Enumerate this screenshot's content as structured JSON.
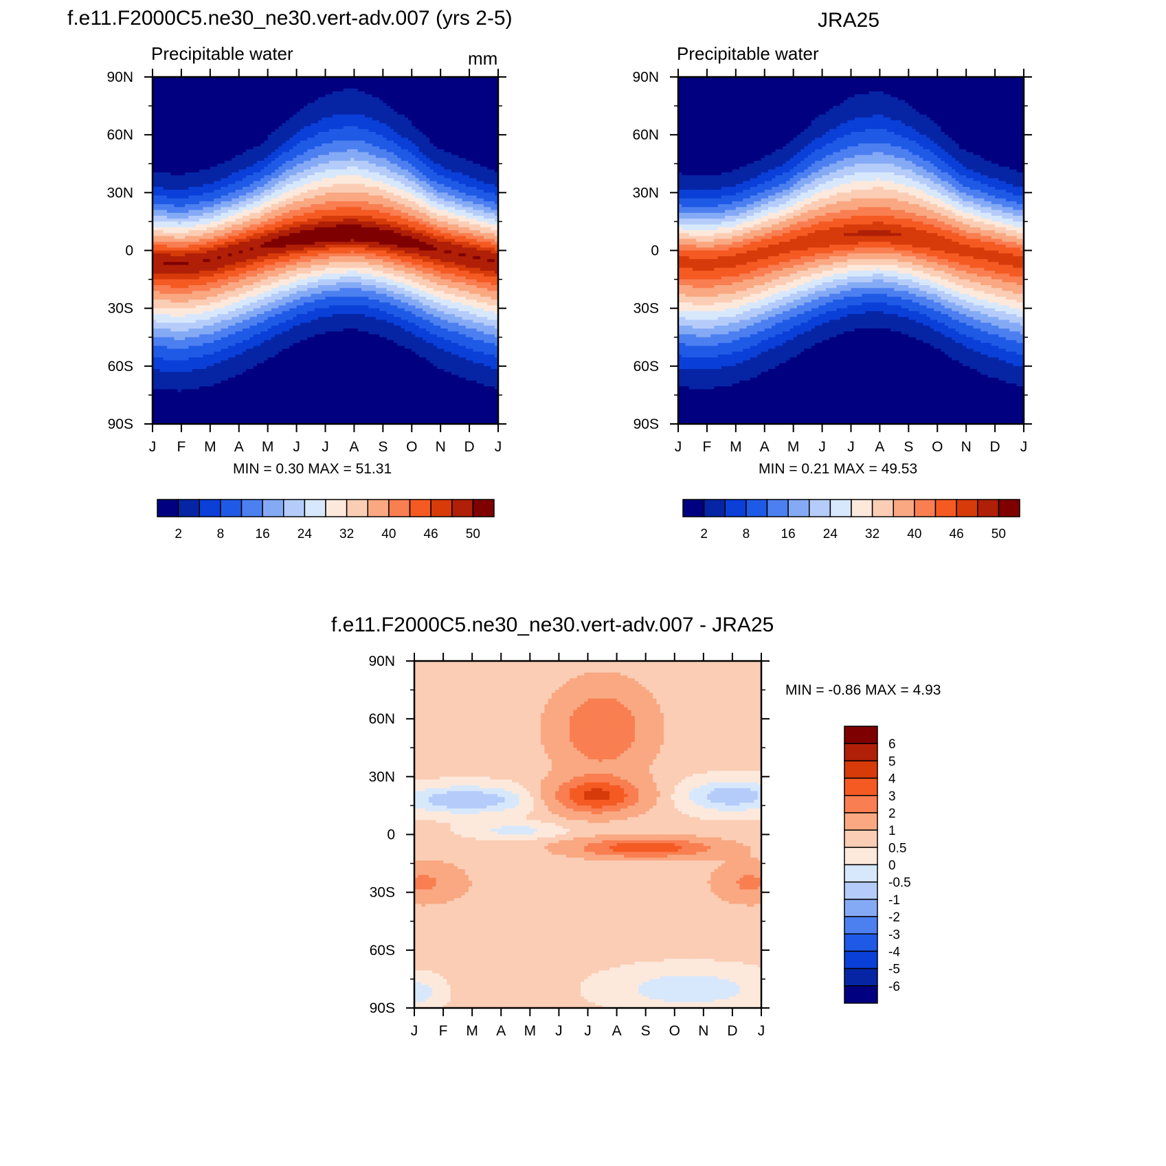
{
  "colors": {
    "pw_levels": [
      "#000080",
      "#0625a5",
      "#0a3fd8",
      "#1f5ae6",
      "#4c7ff0",
      "#85aaf5",
      "#b5ccfa",
      "#d8e8fc",
      "#fde9dc",
      "#fbcdb4",
      "#f9a882",
      "#f97e51",
      "#f55a23",
      "#d73b0a",
      "#b01f07",
      "#7f0000"
    ],
    "diff_levels": [
      "#000080",
      "#0625a5",
      "#0a3fd8",
      "#1f5ae6",
      "#4c7ff0",
      "#85aaf5",
      "#b5ccfa",
      "#d8e8fc",
      "#fde9dc",
      "#fbcdb4",
      "#f9a882",
      "#f97e51",
      "#f55a23",
      "#d73b0a",
      "#b01f07",
      "#7f0000"
    ]
  },
  "chart_data": [
    {
      "type": "heatmap",
      "title": "f.e11.F2000C5.ne30_ne30.vert-adv.007 (yrs 2-5)",
      "subtitle": "Precipitable water",
      "units": "mm",
      "x_ticks": [
        "J",
        "F",
        "M",
        "A",
        "M",
        "J",
        "J",
        "A",
        "S",
        "O",
        "N",
        "D",
        "J"
      ],
      "y_ticks": [
        "90N",
        "60N",
        "30N",
        "0",
        "30S",
        "60S",
        "90S"
      ],
      "ylim": [
        -90,
        90
      ],
      "stats": "MIN =   0.30 MAX =  51.31",
      "colorbar_labels": [
        "2",
        "8",
        "16",
        "24",
        "32",
        "40",
        "46",
        "50"
      ],
      "field": {
        "lat": [
          90,
          75,
          60,
          45,
          30,
          15,
          5,
          -5,
          -15,
          -30,
          -45,
          -60,
          -75,
          -90
        ],
        "month_peak_lat_shift": [
          -6,
          -7,
          -5,
          -1,
          3,
          6,
          8,
          9,
          7,
          4,
          0,
          -3,
          -6
        ],
        "eq_max": 51.31,
        "min": 0.3
      }
    },
    {
      "type": "heatmap",
      "title": "JRA25",
      "subtitle": "Precipitable water",
      "x_ticks": [
        "J",
        "F",
        "M",
        "A",
        "M",
        "J",
        "J",
        "A",
        "S",
        "O",
        "N",
        "D",
        "J"
      ],
      "y_ticks": [
        "90N",
        "60N",
        "30N",
        "0",
        "30S",
        "60S",
        "90S"
      ],
      "ylim": [
        -90,
        90
      ],
      "stats": "MIN =   0.21 MAX =  49.53",
      "colorbar_labels": [
        "2",
        "8",
        "16",
        "24",
        "32",
        "40",
        "46",
        "50"
      ],
      "field": {
        "month_peak_lat_shift": [
          -6,
          -7,
          -5,
          -1,
          3,
          6,
          8,
          9,
          7,
          4,
          0,
          -3,
          -6
        ],
        "eq_max": 49.53,
        "min": 0.21
      }
    },
    {
      "type": "heatmap",
      "title": "f.e11.F2000C5.ne30_ne30.vert-adv.007 - JRA25",
      "x_ticks": [
        "J",
        "F",
        "M",
        "A",
        "M",
        "J",
        "J",
        "A",
        "S",
        "O",
        "N",
        "D",
        "J"
      ],
      "y_ticks": [
        "90N",
        "60N",
        "30N",
        "0",
        "30S",
        "60S",
        "90S"
      ],
      "ylim": [
        -90,
        90
      ],
      "stats": "MIN =  -0.86 MAX =   4.93",
      "colorbar_labels": [
        "6",
        "5",
        "4",
        "3",
        "2",
        "1",
        "0.5",
        "0",
        "-0.5",
        "-1",
        "-2",
        "-3",
        "-4",
        "-5",
        "-6"
      ],
      "field": {
        "min": -0.86,
        "max": 4.93
      }
    }
  ]
}
